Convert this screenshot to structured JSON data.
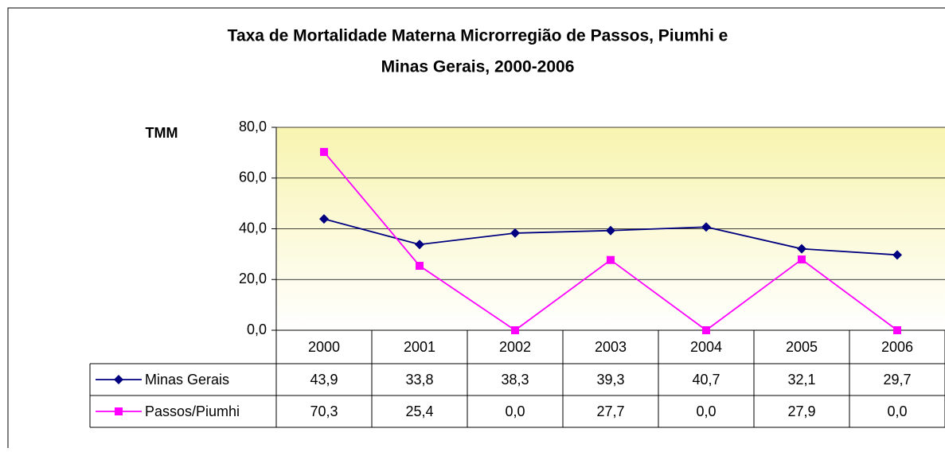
{
  "chart_data": {
    "type": "line",
    "title": [
      "Taxa de Mortalidade Materna  Microrregião de Passos, Piumhi e",
      "Minas Gerais, 2000-2006"
    ],
    "y_label": "TMM",
    "categories": [
      "2000",
      "2001",
      "2002",
      "2003",
      "2004",
      "2005",
      "2006"
    ],
    "series": [
      {
        "name": "Minas Gerais",
        "color": "#000080",
        "marker": "diamond",
        "values": [
          43.9,
          33.8,
          38.3,
          39.3,
          40.7,
          32.1,
          29.7
        ],
        "value_labels": [
          "43,9",
          "33,8",
          "38,3",
          "39,3",
          "40,7",
          "32,1",
          "29,7"
        ]
      },
      {
        "name": "Passos/Piumhi",
        "color": "#ff00ff",
        "marker": "square",
        "values": [
          70.3,
          25.4,
          0.0,
          27.7,
          0.0,
          27.9,
          0.0
        ],
        "value_labels": [
          "70,3",
          "25,4",
          "0,0",
          "27,7",
          "0,0",
          "27,9",
          "0,0"
        ]
      }
    ],
    "ylim": [
      0,
      80
    ],
    "yticks": [
      {
        "value": 0,
        "label": "0,0"
      },
      {
        "value": 20,
        "label": "20,0"
      },
      {
        "value": 40,
        "label": "40,0"
      },
      {
        "value": 60,
        "label": "60,0"
      },
      {
        "value": 80,
        "label": "80,0"
      }
    ],
    "grid": true,
    "data_table": true
  }
}
